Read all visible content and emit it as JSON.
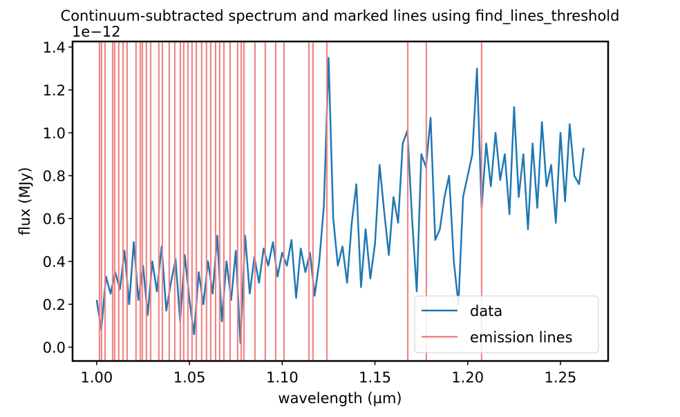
{
  "chart_data": {
    "type": "line",
    "title": "Continuum-subtracted spectrum and marked lines using find_lines_threshold",
    "x_label": "wavelength (µm)",
    "y_label": "flux (MJy)",
    "y_offset_label": "1e−12",
    "xlim": [
      0.987,
      1.2757
    ],
    "ylim": [
      -0.0645,
      1.426
    ],
    "xticks": [
      {
        "value": 1,
        "label": "1.00"
      },
      1.05,
      {
        "value": 1.1,
        "label": "1.10"
      },
      1.15,
      {
        "value": 1.2,
        "label": "1.20"
      },
      1.25
    ],
    "yticks": [
      {
        "value": 0,
        "label": "0.0"
      },
      0.2,
      0.4,
      0.6,
      0.8,
      {
        "value": 1,
        "label": "1.0"
      },
      1.2,
      1.4
    ],
    "legend": "lower right",
    "series": [
      {
        "name": "data",
        "color": "#1f77b4",
        "x": [
          1.0,
          1.0025,
          1.005,
          1.0075,
          1.01,
          1.0125,
          1.015,
          1.0175,
          1.02,
          1.0225,
          1.025,
          1.0275,
          1.03,
          1.0325,
          1.035,
          1.0375,
          1.04,
          1.0425,
          1.045,
          1.0475,
          1.05,
          1.0525,
          1.055,
          1.0575,
          1.06,
          1.0625,
          1.065,
          1.0675,
          1.07,
          1.0725,
          1.075,
          1.0775,
          1.08,
          1.0825,
          1.085,
          1.0875,
          1.09,
          1.0925,
          1.095,
          1.0975,
          1.1,
          1.1025,
          1.105,
          1.1075,
          1.11,
          1.1125,
          1.115,
          1.1175,
          1.12,
          1.1225,
          1.125,
          1.1275,
          1.13,
          1.1325,
          1.135,
          1.1375,
          1.14,
          1.1425,
          1.145,
          1.1475,
          1.15,
          1.1525,
          1.155,
          1.1575,
          1.16,
          1.1625,
          1.165,
          1.1675,
          1.17,
          1.1725,
          1.175,
          1.1775,
          1.18,
          1.1825,
          1.185,
          1.1875,
          1.19,
          1.1925,
          1.195,
          1.1975,
          1.2,
          1.2025,
          1.205,
          1.2075,
          1.21,
          1.2125,
          1.215,
          1.2175,
          1.22,
          1.2225,
          1.225,
          1.2275,
          1.23,
          1.2325,
          1.235,
          1.2375,
          1.24,
          1.2425,
          1.245,
          1.2475,
          1.25,
          1.2525,
          1.255,
          1.2575,
          1.26,
          1.2625
        ],
        "values": [
          0.22,
          0.08,
          0.33,
          0.25,
          0.35,
          0.27,
          0.45,
          0.2,
          0.49,
          0.22,
          0.38,
          0.15,
          0.4,
          0.26,
          0.47,
          0.17,
          0.3,
          0.41,
          0.12,
          0.43,
          0.22,
          0.06,
          0.35,
          0.2,
          0.4,
          0.25,
          0.52,
          0.12,
          0.4,
          0.22,
          0.45,
          0.02,
          0.52,
          0.25,
          0.42,
          0.3,
          0.46,
          0.38,
          0.49,
          0.33,
          0.44,
          0.38,
          0.5,
          0.23,
          0.46,
          0.35,
          0.44,
          0.24,
          0.4,
          0.66,
          1.35,
          0.6,
          0.38,
          0.47,
          0.3,
          0.58,
          0.76,
          0.28,
          0.55,
          0.32,
          0.48,
          0.85,
          0.63,
          0.43,
          0.7,
          0.58,
          0.95,
          1.01,
          0.6,
          0.26,
          0.9,
          0.84,
          1.07,
          0.5,
          0.55,
          0.7,
          0.8,
          0.4,
          0.2,
          0.7,
          0.8,
          0.9,
          1.3,
          0.65,
          0.95,
          0.75,
          1.0,
          0.78,
          0.9,
          0.62,
          1.12,
          0.7,
          0.9,
          0.55,
          0.95,
          0.65,
          1.05,
          0.75,
          0.85,
          0.58,
          1.0,
          0.68,
          1.04,
          0.8,
          0.76,
          0.93
        ]
      }
    ],
    "vlines": {
      "name": "emission lines",
      "color": "#f08080",
      "x": [
        1.0015,
        1.0026,
        1.0045,
        1.0086,
        1.0097,
        1.0119,
        1.0142,
        1.0164,
        1.0212,
        1.0235,
        1.0246,
        1.0268,
        1.0291,
        1.0335,
        1.0354,
        1.0391,
        1.0421,
        1.0451,
        1.0469,
        1.0492,
        1.0514,
        1.0537,
        1.0566,
        1.0592,
        1.0615,
        1.0641,
        1.0663,
        1.0686,
        1.0719,
        1.076,
        1.0779,
        1.0794,
        1.0853,
        1.0909,
        1.0965,
        1.101,
        1.1144,
        1.1166,
        1.1241,
        1.1677,
        1.1777,
        1.2075
      ]
    }
  }
}
